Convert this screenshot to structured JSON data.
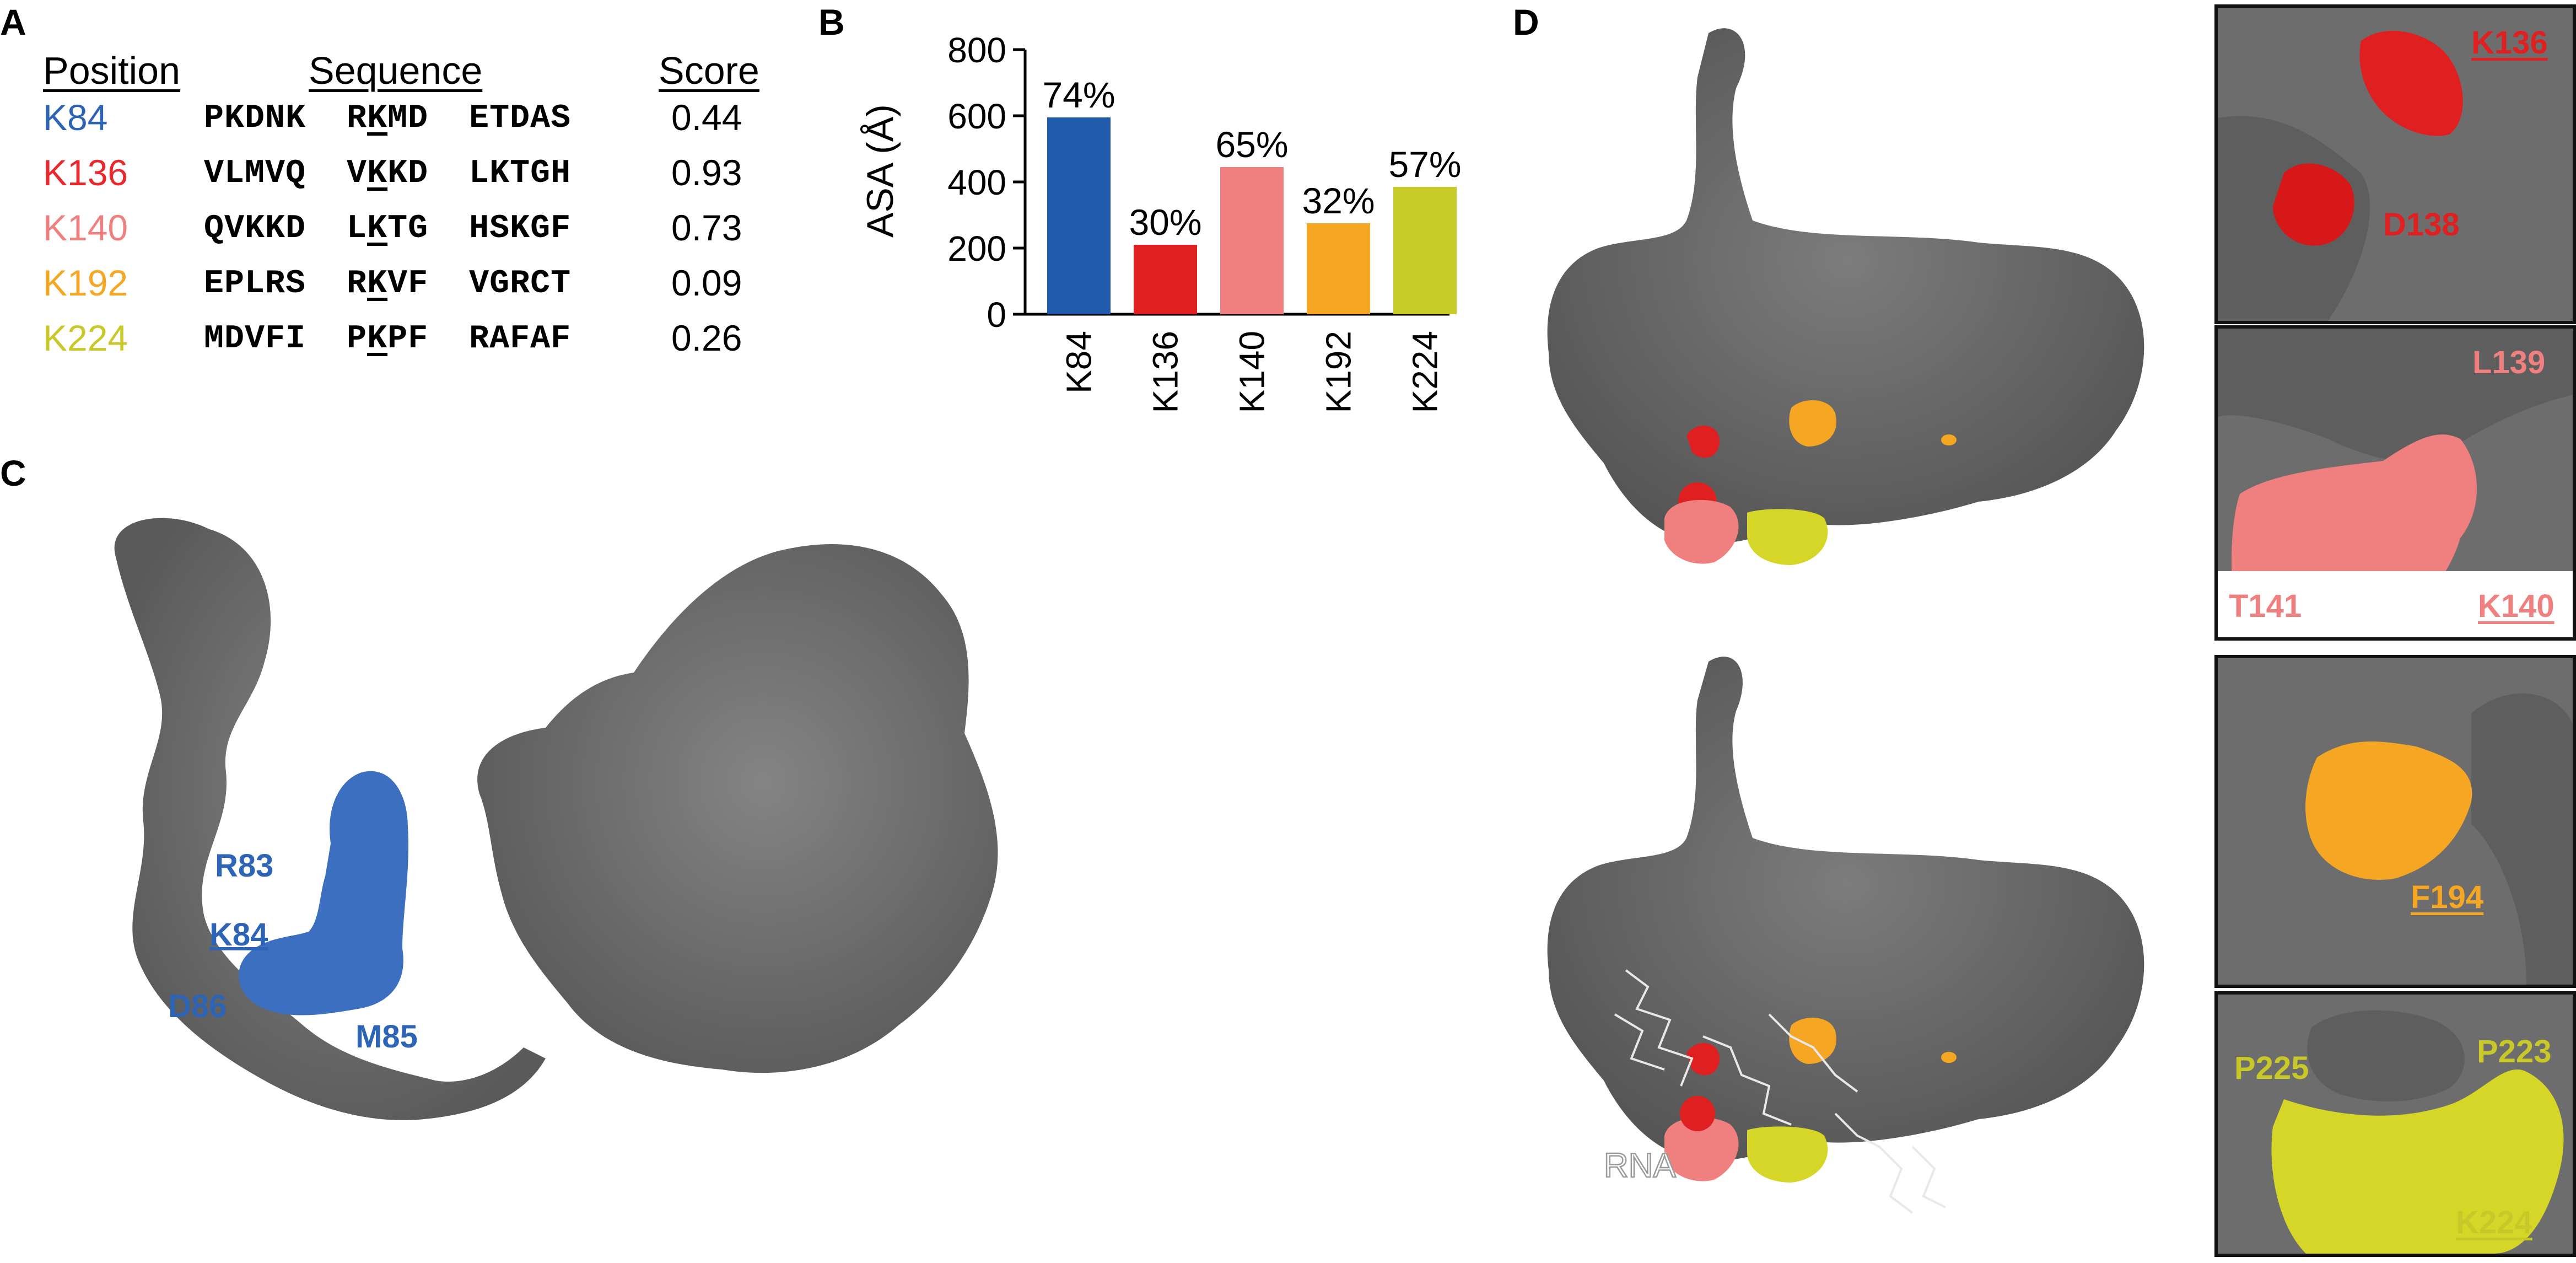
{
  "panels": {
    "a": "A",
    "b": "B",
    "c": "C",
    "d": "D"
  },
  "panel_a": {
    "headers": {
      "position": "Position",
      "sequence": "Sequence",
      "score": "Score"
    },
    "rows": [
      {
        "position": "K84",
        "color": "#2e64b5",
        "seq1": "PKDNK",
        "seq_pre": "R",
        "seq_k": "K",
        "seq_post": "MD",
        "seq3": "ETDAS",
        "score": "0.44"
      },
      {
        "position": "K136",
        "color": "#e8282c",
        "seq1": "VLMVQ",
        "seq_pre": "V",
        "seq_k": "K",
        "seq_post": "KD",
        "seq3": "LKTGH",
        "score": "0.93"
      },
      {
        "position": "K140",
        "color": "#f08080",
        "seq1": "QVKKD",
        "seq_pre": "L",
        "seq_k": "K",
        "seq_post": "TG",
        "seq3": "HSKGF",
        "score": "0.73"
      },
      {
        "position": "K192",
        "color": "#f5a623",
        "seq1": "EPLRS",
        "seq_pre": "R",
        "seq_k": "K",
        "seq_post": "VF",
        "seq3": "VGRCT",
        "score": "0.09"
      },
      {
        "position": "K224",
        "color": "#c8c828",
        "seq1": "MDVFI",
        "seq_pre": "P",
        "seq_k": "K",
        "seq_post": "PF",
        "seq3": "RAFAF",
        "score": "0.26"
      }
    ]
  },
  "chart_data": {
    "type": "bar",
    "ylabel": "ASA (Å)",
    "ylim": [
      0,
      800
    ],
    "yticks": [
      "0",
      "200",
      "400",
      "600",
      "800"
    ],
    "categories": [
      "K84",
      "K136",
      "K140",
      "K192",
      "K224"
    ],
    "values": [
      595,
      210,
      445,
      275,
      385
    ],
    "labels": [
      "74%",
      "30%",
      "65%",
      "32%",
      "57%"
    ],
    "colors": [
      "#1f5aab",
      "#e02020",
      "#f08080",
      "#f5a623",
      "#c8cc28"
    ]
  },
  "panel_c": {
    "labels": {
      "r83": "R83",
      "k84": "K84",
      "d86": "D86",
      "m85": "M85"
    },
    "colors": {
      "surface": "#6e6e6e",
      "highlight": "#3d6fc0",
      "label": "#2e64b5"
    }
  },
  "panel_d": {
    "rna_label": "RNA",
    "insets": [
      {
        "labels": {
          "a": "K136",
          "b": "D138"
        },
        "label_color": "#e02020"
      },
      {
        "labels": {
          "a": "L139",
          "b": "T141",
          "c": "K140"
        },
        "label_color": "#f08080"
      },
      {
        "labels": {
          "a": "F194"
        },
        "label_color": "#f5a623"
      },
      {
        "labels": {
          "a": "P225",
          "b": "P223",
          "c": "K224"
        },
        "label_color": "#c8c828"
      }
    ]
  }
}
